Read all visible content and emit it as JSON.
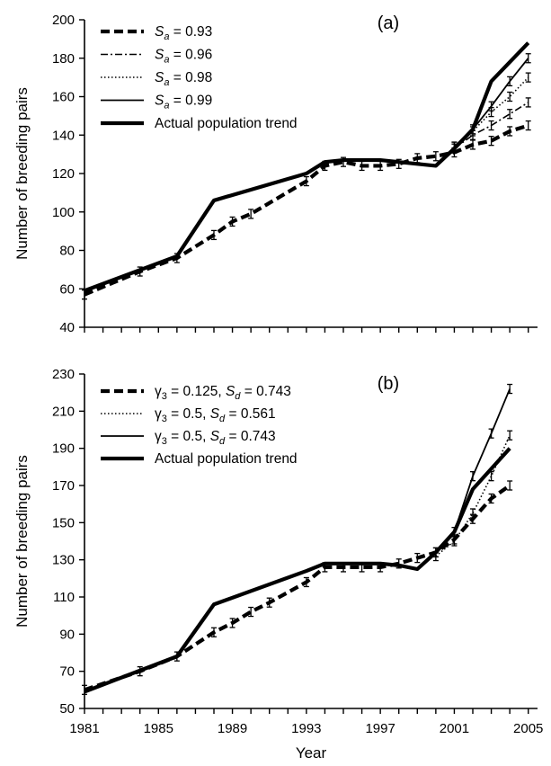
{
  "chart_data": [
    {
      "type": "line",
      "panel_label": "(a)",
      "ylabel": "Number of breeding pairs",
      "xlabel": "",
      "ylim": [
        40,
        200
      ],
      "yticks": [
        40,
        60,
        80,
        100,
        120,
        140,
        160,
        180,
        200
      ],
      "xlim": [
        1981,
        2005
      ],
      "xticks": [],
      "legend_position": "top-left",
      "series": [
        {
          "legend_symbol": "S",
          "legend_sub": "a",
          "legend_value": " = 0.93",
          "style": "dashed-thick",
          "x": [
            1981,
            1984,
            1986,
            1988,
            1989,
            1990,
            1993,
            1994,
            1995,
            1996,
            1997,
            1998,
            1999,
            2000,
            2001,
            2002,
            2003,
            2004,
            2005
          ],
          "y": [
            57,
            69,
            76,
            88,
            95,
            99,
            116,
            124,
            126,
            124,
            124,
            125,
            128,
            129,
            131,
            135,
            137,
            142,
            145
          ]
        },
        {
          "legend_symbol": "S",
          "legend_sub": "a",
          "legend_value": " = 0.96",
          "style": "dashdot",
          "x": [
            2001,
            2002,
            2003,
            2004,
            2005
          ],
          "y": [
            133,
            140,
            145,
            151,
            157
          ]
        },
        {
          "legend_symbol": "S",
          "legend_sub": "a",
          "legend_value": " = 0.98",
          "style": "dotted",
          "x": [
            2001,
            2002,
            2003,
            2004,
            2005
          ],
          "y": [
            134,
            142,
            152,
            160,
            170
          ]
        },
        {
          "legend_symbol": "S",
          "legend_sub": "a",
          "legend_value": " = 0.99",
          "style": "solid-thin",
          "x": [
            2001,
            2002,
            2003,
            2004,
            2005
          ],
          "y": [
            134,
            143,
            155,
            168,
            180
          ]
        },
        {
          "legend_text": "Actual population trend",
          "style": "solid-thick",
          "x": [
            1981,
            1986,
            1988,
            1993,
            1994,
            1995,
            1996,
            1997,
            1998,
            2000,
            2001,
            2002,
            2003,
            2005
          ],
          "y": [
            59,
            77,
            106,
            120,
            126,
            127,
            127,
            127,
            126,
            124,
            133,
            143,
            168,
            188
          ]
        }
      ]
    },
    {
      "type": "line",
      "panel_label": "(b)",
      "ylabel": "Number of breeding pairs",
      "xlabel": "Year",
      "ylim": [
        50,
        230
      ],
      "yticks": [
        50,
        70,
        90,
        110,
        130,
        150,
        170,
        190,
        210,
        230
      ],
      "xlim": [
        1981,
        2005
      ],
      "xticks": [
        1981,
        1985,
        1989,
        1993,
        1997,
        2001,
        2005
      ],
      "legend_position": "top-left",
      "series": [
        {
          "legend_symbol": "γ",
          "legend_sub": "3",
          "legend_value": " = 0.125, ",
          "legend_symbol2": "S",
          "legend_sub2": "d",
          "legend_value2": " = 0.743",
          "style": "dashed-thick",
          "x": [
            1981,
            1984,
            1986,
            1988,
            1989,
            1990,
            1991,
            1993,
            1994,
            1995,
            1996,
            1997,
            1998,
            1999,
            2000,
            2001,
            2002,
            2003,
            2004
          ],
          "y": [
            60,
            70,
            78,
            91,
            96,
            102,
            107,
            118,
            126,
            126,
            126,
            126,
            128,
            131,
            134,
            141,
            152,
            163,
            170
          ]
        },
        {
          "legend_symbol": "γ",
          "legend_sub": "3",
          "legend_value": " = 0.5, ",
          "legend_symbol2": "S",
          "legend_sub2": "d",
          "legend_value2": " = 0.561",
          "style": "dotted",
          "x": [
            2000,
            2001,
            2002,
            2003,
            2004
          ],
          "y": [
            132,
            140,
            155,
            175,
            197
          ]
        },
        {
          "legend_symbol": "γ",
          "legend_sub": "3",
          "legend_value": " = 0.5, ",
          "legend_symbol2": "S",
          "legend_sub2": "d",
          "legend_value2": " = 0.743",
          "style": "solid-thin",
          "x": [
            2000,
            2001,
            2002,
            2003,
            2004
          ],
          "y": [
            134,
            145,
            175,
            198,
            222
          ]
        },
        {
          "legend_text": "Actual population trend",
          "style": "solid-thick",
          "x": [
            1981,
            1986,
            1988,
            1993,
            1994,
            1995,
            1997,
            1998,
            1999,
            2000,
            2001,
            2002,
            2004
          ],
          "y": [
            59,
            78,
            106,
            124,
            128,
            128,
            128,
            127,
            125,
            134,
            145,
            168,
            190
          ]
        }
      ]
    }
  ]
}
